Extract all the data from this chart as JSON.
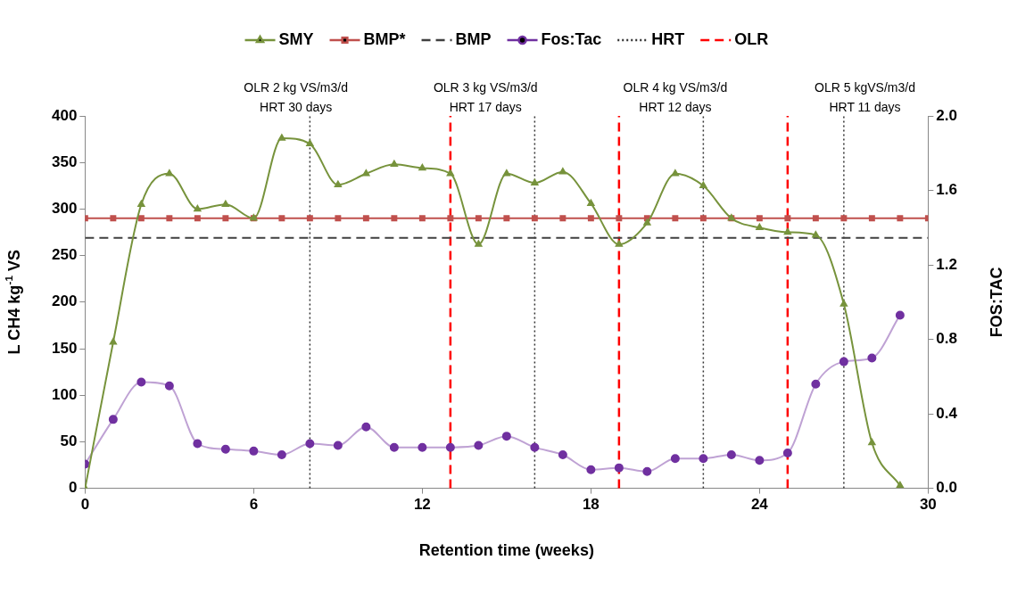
{
  "chart_data": {
    "type": "line",
    "xlabel": "Retention time (weeks)",
    "ylabel": "L CH4 kg$^{-1}$ VS",
    "y2label": "FOS:TAC",
    "xlim": [
      0,
      30
    ],
    "xticks": [
      0,
      6,
      12,
      18,
      24,
      30
    ],
    "ylim": [
      0,
      400
    ],
    "yticks": [
      0,
      50,
      100,
      150,
      200,
      250,
      300,
      350,
      400
    ],
    "y2lim": [
      0,
      2
    ],
    "y2ticks": [
      {
        "value": 0,
        "label": "0.0"
      },
      0.4,
      0.8,
      1.2,
      1.6,
      {
        "value": 2,
        "label": "2.0"
      }
    ],
    "grid": false,
    "legend": "top",
    "series": [
      {
        "name": "SMY",
        "color": "#77933c",
        "marker": "triangle",
        "x": [
          0,
          1,
          2,
          3,
          4,
          5,
          6,
          7,
          8,
          9,
          10,
          11,
          12,
          13,
          14,
          15,
          16,
          17,
          18,
          19,
          20,
          21,
          22,
          23,
          24,
          25,
          26,
          27,
          28,
          29
        ],
        "values": [
          0,
          157,
          305,
          338,
          300,
          305,
          290,
          376,
          370,
          326,
          338,
          348,
          344,
          338,
          262,
          338,
          328,
          340,
          306,
          262,
          285,
          338,
          325,
          290,
          280,
          275,
          272,
          198,
          49,
          3
        ]
      },
      {
        "name": "BMP*",
        "color": "#c0504d",
        "marker": "square",
        "x": [
          0,
          1,
          2,
          3,
          4,
          5,
          6,
          7,
          8,
          9,
          10,
          11,
          12,
          13,
          14,
          15,
          16,
          17,
          18,
          19,
          20,
          21,
          22,
          23,
          24,
          25,
          26,
          27,
          28,
          29,
          30
        ],
        "values": [
          290,
          290,
          290,
          290,
          290,
          290,
          290,
          290,
          290,
          290,
          290,
          290,
          290,
          290,
          290,
          290,
          290,
          290,
          290,
          290,
          290,
          290,
          290,
          290,
          290,
          290,
          290,
          290,
          290,
          290,
          290
        ]
      },
      {
        "name": "BMP",
        "color": "#404040",
        "marker": "none",
        "line_style": "dashed",
        "x": [
          0,
          30
        ],
        "values": [
          269,
          269
        ]
      },
      {
        "name": "Fos:Tac",
        "color": "#7030a0",
        "marker": "circle",
        "axis": "y2",
        "x": [
          0,
          1,
          2,
          3,
          4,
          5,
          6,
          7,
          8,
          9,
          10,
          11,
          12,
          13,
          14,
          15,
          16,
          17,
          18,
          19,
          20,
          21,
          22,
          23,
          24,
          25,
          26,
          27,
          28,
          29
        ],
        "values": [
          0.13,
          0.37,
          0.57,
          0.55,
          0.24,
          0.21,
          0.2,
          0.18,
          0.24,
          0.23,
          0.33,
          0.22,
          0.22,
          0.22,
          0.23,
          0.28,
          0.22,
          0.18,
          0.1,
          0.11,
          0.09,
          0.16,
          0.16,
          0.18,
          0.15,
          0.19,
          0.56,
          0.68,
          0.7,
          0.93
        ]
      }
    ],
    "ref_lines": [
      {
        "axis": "x",
        "value": 8,
        "label": "HRT",
        "color": "#333333",
        "line_style": "dotted"
      },
      {
        "axis": "x",
        "value": 16,
        "color": "#333333",
        "line_style": "dotted"
      },
      {
        "axis": "x",
        "value": 22,
        "color": "#333333",
        "line_style": "dotted"
      },
      {
        "axis": "x",
        "value": 27,
        "color": "#333333",
        "line_style": "dotted"
      },
      {
        "axis": "x",
        "value": 13,
        "label": "OLR",
        "color": "#ff0000",
        "line_style": "dashed"
      },
      {
        "axis": "x",
        "value": 19,
        "color": "#ff0000",
        "line_style": "dashed"
      },
      {
        "axis": "x",
        "value": 25,
        "color": "#ff0000",
        "line_style": "dashed"
      }
    ],
    "annotations": [
      "OLR 2 kg VS/m3/d\nHRT 30 days",
      "OLR 3 kg VS/m3/d\nHRT 17 days",
      "OLR 4 kg VS/m3/d\nHRT 12 days",
      "OLR 5 kgVS/m3/d\nHRT 11 days"
    ]
  }
}
